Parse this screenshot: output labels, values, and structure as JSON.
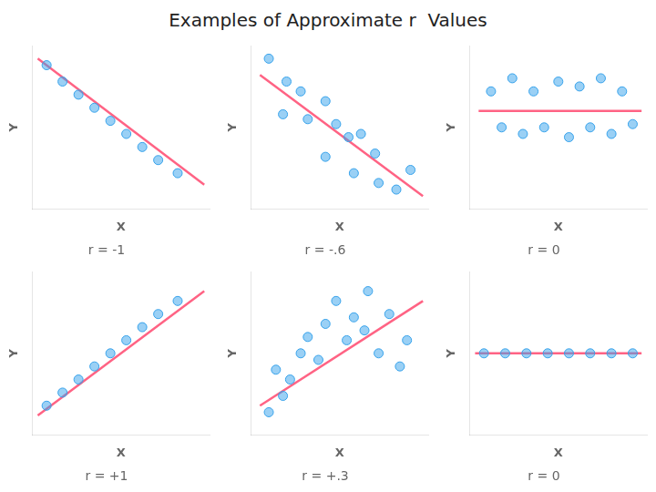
{
  "title": "Examples of Approximate r  Values",
  "chart_data": [
    {
      "type": "scatter",
      "title": "r = -1",
      "x_label": "X",
      "y_label": "Y",
      "xlim": [
        0,
        1
      ],
      "ylim": [
        0,
        1
      ],
      "tick_labels": false,
      "grid": false,
      "series": [
        {
          "type": "scatter",
          "x": [
            0.08,
            0.17,
            0.26,
            0.35,
            0.44,
            0.53,
            0.62,
            0.71,
            0.82
          ],
          "values": [
            0.88,
            0.78,
            0.7,
            0.62,
            0.54,
            0.46,
            0.38,
            0.3,
            0.22
          ]
        },
        {
          "type": "line",
          "x": [
            0.03,
            0.97
          ],
          "values": [
            0.92,
            0.15
          ]
        }
      ]
    },
    {
      "type": "scatter",
      "title": "r = -.6",
      "x_label": "X",
      "y_label": "Y",
      "xlim": [
        0,
        1
      ],
      "ylim": [
        0,
        1
      ],
      "tick_labels": false,
      "grid": false,
      "series": [
        {
          "type": "scatter",
          "x": [
            0.1,
            0.2,
            0.28,
            0.18,
            0.32,
            0.42,
            0.48,
            0.55,
            0.62,
            0.7,
            0.58,
            0.72,
            0.82,
            0.9,
            0.42
          ],
          "values": [
            0.92,
            0.78,
            0.72,
            0.58,
            0.55,
            0.66,
            0.52,
            0.44,
            0.46,
            0.34,
            0.22,
            0.16,
            0.12,
            0.24,
            0.32
          ]
        },
        {
          "type": "line",
          "x": [
            0.05,
            0.97
          ],
          "values": [
            0.82,
            0.08
          ]
        }
      ]
    },
    {
      "type": "scatter",
      "title": "r = 0",
      "x_label": "X",
      "y_label": "Y",
      "xlim": [
        0,
        1
      ],
      "ylim": [
        0,
        1
      ],
      "tick_labels": false,
      "grid": false,
      "series": [
        {
          "type": "scatter",
          "x": [
            0.12,
            0.24,
            0.36,
            0.5,
            0.62,
            0.74,
            0.86,
            0.18,
            0.3,
            0.42,
            0.56,
            0.68,
            0.8,
            0.92
          ],
          "values": [
            0.72,
            0.8,
            0.72,
            0.78,
            0.75,
            0.8,
            0.72,
            0.5,
            0.46,
            0.5,
            0.44,
            0.5,
            0.46,
            0.52
          ]
        },
        {
          "type": "line",
          "x": [
            0.05,
            0.97
          ],
          "values": [
            0.6,
            0.6
          ]
        }
      ]
    },
    {
      "type": "scatter",
      "title": "r = +1",
      "x_label": "X",
      "y_label": "Y",
      "xlim": [
        0,
        1
      ],
      "ylim": [
        0,
        1
      ],
      "tick_labels": false,
      "grid": false,
      "series": [
        {
          "type": "scatter",
          "x": [
            0.08,
            0.17,
            0.26,
            0.35,
            0.44,
            0.53,
            0.62,
            0.71,
            0.82
          ],
          "values": [
            0.18,
            0.26,
            0.34,
            0.42,
            0.5,
            0.58,
            0.66,
            0.74,
            0.82
          ]
        },
        {
          "type": "line",
          "x": [
            0.03,
            0.97
          ],
          "values": [
            0.12,
            0.88
          ]
        }
      ]
    },
    {
      "type": "scatter",
      "title": "r = +.3",
      "x_label": "X",
      "y_label": "Y",
      "xlim": [
        0,
        1
      ],
      "ylim": [
        0,
        1
      ],
      "tick_labels": false,
      "grid": false,
      "series": [
        {
          "type": "scatter",
          "x": [
            0.1,
            0.18,
            0.14,
            0.22,
            0.28,
            0.32,
            0.38,
            0.42,
            0.48,
            0.54,
            0.58,
            0.64,
            0.66,
            0.72,
            0.78,
            0.84,
            0.88
          ],
          "values": [
            0.14,
            0.24,
            0.4,
            0.34,
            0.5,
            0.6,
            0.46,
            0.68,
            0.82,
            0.58,
            0.72,
            0.64,
            0.88,
            0.5,
            0.74,
            0.42,
            0.58
          ]
        },
        {
          "type": "line",
          "x": [
            0.05,
            0.97
          ],
          "values": [
            0.18,
            0.82
          ]
        }
      ]
    },
    {
      "type": "scatter",
      "title": "r = 0",
      "x_label": "X",
      "y_label": "Y",
      "xlim": [
        0,
        1
      ],
      "ylim": [
        0,
        1
      ],
      "tick_labels": false,
      "grid": false,
      "series": [
        {
          "type": "scatter",
          "x": [
            0.08,
            0.2,
            0.32,
            0.44,
            0.56,
            0.68,
            0.8,
            0.92
          ],
          "values": [
            0.5,
            0.5,
            0.5,
            0.5,
            0.5,
            0.5,
            0.5,
            0.5
          ]
        },
        {
          "type": "line",
          "x": [
            0.03,
            0.97
          ],
          "values": [
            0.5,
            0.5
          ]
        }
      ]
    }
  ]
}
